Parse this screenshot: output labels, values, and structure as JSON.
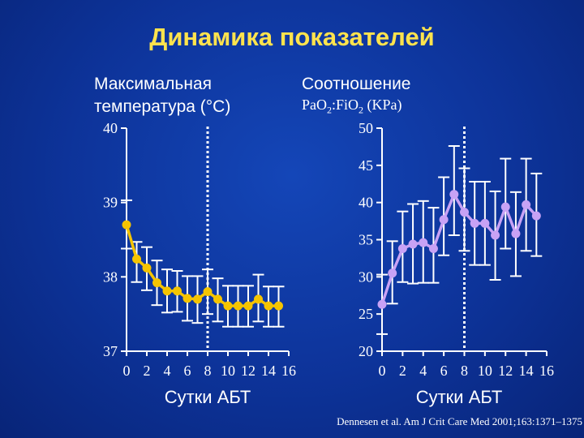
{
  "slide_title": "Динамика показателей",
  "left_panel": {
    "label_line1": "Максимальная",
    "label_line2": "температура (°C)",
    "xlabel": "Сутки АБТ"
  },
  "right_panel": {
    "label_line1": "Соотношение",
    "label_line2_prefix": "PaO",
    "sub1": "2",
    "label_line2_mid": ":FiO",
    "sub2": "2",
    "label_line2_suffix": " (KPa)",
    "xlabel": "Сутки АБТ"
  },
  "citation": "Dennesen et al. Am J Crit Care Med 2001;163:1371–1375",
  "colors": {
    "temperature": "#f5c400",
    "pao2": "#c8a2f5",
    "axis": "#ffffff",
    "title": "#ffe34d"
  },
  "chart_data": [
    {
      "type": "line",
      "ylabel": "Максимальная температура (°C)",
      "xlabel": "Сутки АБТ",
      "ylim": [
        37,
        40
      ],
      "yticks": [
        37,
        38,
        39,
        40
      ],
      "xlim": [
        0,
        16
      ],
      "xticks": [
        0,
        2,
        4,
        6,
        8,
        10,
        12,
        14,
        16
      ],
      "marker_day": 8,
      "series": [
        {
          "x": [
            0,
            1,
            2,
            3,
            4,
            5,
            6,
            7,
            8,
            9,
            10,
            11,
            12,
            13,
            14,
            15
          ],
          "y": [
            38.7,
            38.24,
            38.12,
            37.92,
            37.81,
            37.81,
            37.71,
            37.7,
            37.8,
            37.7,
            37.61,
            37.61,
            37.61,
            37.7,
            37.61,
            37.61
          ],
          "err_low": [
            38.38,
            37.93,
            37.82,
            37.62,
            37.52,
            37.53,
            37.41,
            37.38,
            37.5,
            37.4,
            37.33,
            37.33,
            37.33,
            37.4,
            37.33,
            37.33
          ],
          "err_high": [
            39.03,
            38.47,
            38.4,
            38.22,
            38.1,
            38.08,
            38.01,
            38.01,
            38.1,
            37.98,
            37.88,
            37.88,
            37.88,
            38.03,
            37.87,
            37.87
          ]
        }
      ]
    },
    {
      "type": "line",
      "ylabel": "Соотношение PaO2:FiO2 (KPa)",
      "xlabel": "Сутки АБТ",
      "ylim": [
        20,
        50
      ],
      "yticks": [
        20,
        25,
        30,
        35,
        40,
        45,
        50
      ],
      "xlim": [
        0,
        16
      ],
      "xticks": [
        0,
        2,
        4,
        6,
        8,
        10,
        12,
        14,
        16
      ],
      "marker_day": 8,
      "series": [
        {
          "x": [
            0,
            1,
            2,
            3,
            4,
            5,
            6,
            7,
            8,
            9,
            10,
            11,
            12,
            13,
            14,
            15
          ],
          "y": [
            26.3,
            30.5,
            33.8,
            34.4,
            34.6,
            33.8,
            37.7,
            41.1,
            38.7,
            37.2,
            37.2,
            35.6,
            39.4,
            35.8,
            39.7,
            38.2
          ],
          "err_low": [
            22.3,
            26.4,
            29.3,
            29.1,
            29.2,
            29.2,
            32.9,
            35.6,
            33.5,
            31.6,
            31.6,
            29.6,
            33.8,
            30.1,
            33.5,
            32.8
          ],
          "err_high": [
            30.3,
            34.8,
            38.8,
            39.8,
            40.2,
            39.3,
            43.4,
            47.6,
            44.6,
            42.8,
            42.8,
            41.5,
            45.9,
            41.4,
            45.9,
            43.9
          ]
        }
      ]
    }
  ]
}
